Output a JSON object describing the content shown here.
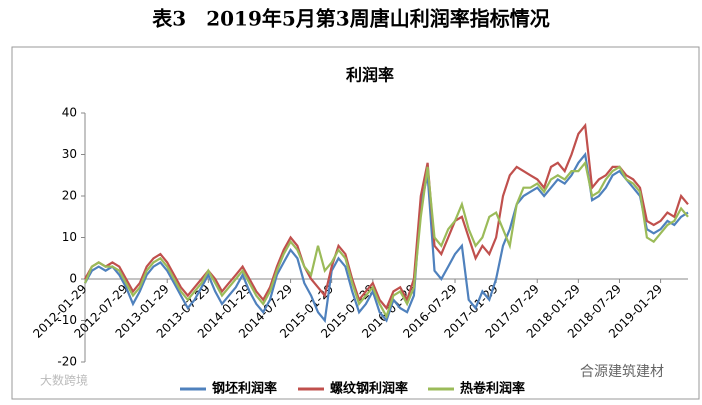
{
  "page_title": "表3　2019年5月第3周唐山利润率指标情况",
  "watermarks": [
    "大数跨境",
    "合源建筑建材"
  ],
  "chart_data": {
    "type": "line",
    "title": "利润率",
    "categories": [
      "2012-01-29",
      null,
      null,
      null,
      null,
      null,
      "2012-07-29",
      null,
      null,
      null,
      null,
      null,
      "2013-01-29",
      null,
      null,
      null,
      null,
      null,
      "2013-07-29",
      null,
      null,
      null,
      null,
      null,
      "2014-01-29",
      null,
      null,
      null,
      null,
      null,
      "2014-07-29",
      null,
      null,
      null,
      null,
      null,
      "2015-01-29",
      null,
      null,
      null,
      null,
      null,
      "2015-07-29",
      null,
      null,
      null,
      null,
      null,
      "2016-01-29",
      null,
      null,
      null,
      null,
      null,
      "2016-07-29",
      null,
      null,
      null,
      null,
      null,
      "2017-01-29",
      null,
      null,
      null,
      null,
      null,
      "2017-07-29",
      null,
      null,
      null,
      null,
      null,
      "2018-01-29",
      null,
      null,
      null,
      null,
      null,
      "2018-07-29",
      null,
      null,
      null,
      null,
      null,
      "2019-01-29",
      null,
      null,
      null,
      null
    ],
    "series": [
      {
        "name": "钢坯利润率",
        "color": "#4f81bd",
        "values": [
          -1,
          2,
          3,
          2,
          3,
          1,
          -2,
          -6,
          -3,
          1,
          3,
          4,
          2,
          -1,
          -4,
          -7,
          -5,
          -2,
          1,
          -3,
          -6,
          -4,
          -2,
          1,
          -3,
          -6,
          -8,
          -5,
          1,
          4,
          7,
          5,
          -1,
          -4,
          -8,
          -10,
          2,
          5,
          3,
          -3,
          -8,
          -6,
          -3,
          -8,
          -10,
          -5,
          -7,
          -8,
          -4,
          18,
          25,
          2,
          0,
          3,
          6,
          8,
          -5,
          -7,
          -3,
          -5,
          0,
          8,
          12,
          18,
          20,
          21,
          22,
          20,
          22,
          24,
          23,
          25,
          28,
          30,
          19,
          20,
          22,
          25,
          26,
          24,
          22,
          20,
          12,
          11,
          12,
          14,
          13,
          15,
          16
        ]
      },
      {
        "name": "螺纹钢利润率",
        "color": "#c0504d",
        "values": [
          0,
          3,
          4,
          3,
          4,
          3,
          0,
          -3,
          -1,
          3,
          5,
          6,
          4,
          1,
          -2,
          -4,
          -2,
          0,
          2,
          0,
          -3,
          -1,
          1,
          3,
          0,
          -3,
          -5,
          -2,
          3,
          7,
          10,
          8,
          3,
          0,
          -2,
          -4,
          3,
          8,
          6,
          0,
          -5,
          -3,
          -1,
          -5,
          -7,
          -3,
          -2,
          -5,
          0,
          20,
          28,
          8,
          6,
          10,
          14,
          15,
          10,
          5,
          8,
          6,
          10,
          20,
          25,
          27,
          26,
          25,
          24,
          22,
          27,
          28,
          26,
          30,
          35,
          37,
          22,
          24,
          25,
          27,
          27,
          25,
          24,
          22,
          14,
          13,
          14,
          16,
          15,
          20,
          18
        ]
      },
      {
        "name": "热卷利润率",
        "color": "#9bbb59",
        "values": [
          -1,
          3,
          4,
          3,
          3,
          2,
          -1,
          -4,
          -2,
          2,
          4,
          5,
          3,
          0,
          -3,
          -5,
          -3,
          -1,
          2,
          -1,
          -4,
          -2,
          0,
          2,
          -1,
          -4,
          -6,
          -3,
          2,
          6,
          9,
          7,
          3,
          1,
          8,
          2,
          4,
          7,
          5,
          -1,
          -6,
          -4,
          -2,
          -6,
          -9,
          -4,
          -3,
          -6,
          -2,
          15,
          27,
          10,
          8,
          12,
          14,
          18,
          12,
          8,
          10,
          15,
          16,
          12,
          8,
          18,
          22,
          22,
          23,
          21,
          24,
          25,
          24,
          26,
          26,
          28,
          20,
          21,
          24,
          26,
          27,
          24,
          23,
          21,
          10,
          9,
          11,
          13,
          14,
          17,
          15
        ]
      }
    ],
    "ylim": [
      -20,
      40
    ],
    "yticks": [
      -20,
      -10,
      0,
      10,
      20,
      30,
      40
    ],
    "grid": false,
    "legend": "bottom"
  }
}
